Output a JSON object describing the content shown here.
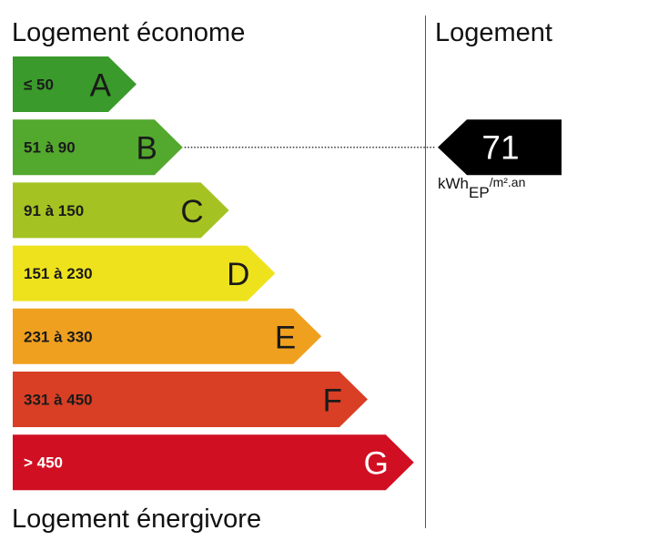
{
  "headings": {
    "top_left": "Logement économe",
    "bottom_left": "Logement énergivore",
    "top_right": "Logement"
  },
  "chart_data": {
    "type": "bar",
    "categories": [
      "A",
      "B",
      "C",
      "D",
      "E",
      "F",
      "G"
    ],
    "range_labels": [
      "≤ 50",
      "51 à 90",
      "91 à 150",
      "151 à 230",
      "231 à 330",
      "331 à 450",
      "> 450"
    ],
    "colors": [
      "#3a9a2b",
      "#53a82e",
      "#a4c322",
      "#eee21d",
      "#f0a01f",
      "#d83f25",
      "#d10f22"
    ],
    "light_text": [
      false,
      false,
      false,
      false,
      false,
      false,
      true
    ],
    "value": 71,
    "value_label": "71",
    "value_class": "B",
    "unit": {
      "main": "kWh",
      "subscript": "EP",
      "suffix": "/m².an"
    }
  }
}
